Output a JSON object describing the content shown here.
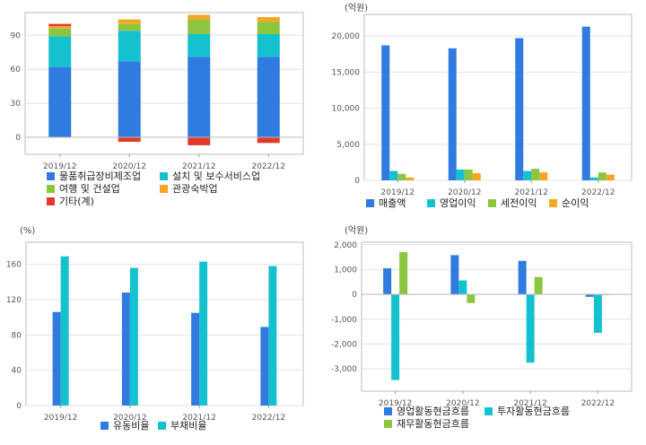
{
  "chart_data": [
    {
      "type": "bar",
      "stacked": true,
      "title": "",
      "unit": "",
      "categories": [
        "2019/12",
        "2020/12",
        "2021/12",
        "2022/12"
      ],
      "ylim": [
        -15,
        110
      ],
      "yticks": [
        0,
        30,
        60,
        90
      ],
      "grid": true,
      "legend": "bottom",
      "series": [
        {
          "name": "물품취급장비제조업",
          "color": "#2f7be0",
          "values": [
            62,
            67,
            71,
            71
          ]
        },
        {
          "name": "설치 및 보수서비스업",
          "color": "#15c1cf",
          "values": [
            27,
            27,
            20,
            20
          ]
        },
        {
          "name": "여행 및 건설업",
          "color": "#8cc63f",
          "values": [
            7,
            6,
            13,
            11
          ]
        },
        {
          "name": "관광숙박업",
          "color": "#f6a623",
          "values": [
            2,
            4,
            4,
            4
          ]
        },
        {
          "name": "기타(계)",
          "color": "#e03b2a",
          "values": [
            2,
            -4,
            -7,
            -5
          ]
        }
      ]
    },
    {
      "type": "bar",
      "title": "",
      "unit": "(억원)",
      "categories": [
        "2019/12",
        "2020/12",
        "2021/12",
        "2022/12"
      ],
      "ylim": [
        0,
        23000
      ],
      "yticks": [
        0,
        5000,
        10000,
        15000,
        20000
      ],
      "grid": true,
      "legend": "bottom",
      "series": [
        {
          "name": "매출액",
          "color": "#2f7be0",
          "values": [
            18700,
            18300,
            19700,
            21300
          ]
        },
        {
          "name": "영업이익",
          "color": "#15c1cf",
          "values": [
            1300,
            1500,
            1300,
            400
          ]
        },
        {
          "name": "세전이익",
          "color": "#8cc63f",
          "values": [
            900,
            1500,
            1600,
            1100
          ]
        },
        {
          "name": "순이익",
          "color": "#f6a623",
          "values": [
            400,
            1000,
            1100,
            800
          ]
        }
      ]
    },
    {
      "type": "bar",
      "title": "",
      "unit": "(%)",
      "categories": [
        "2019/12",
        "2020/12",
        "2021/12",
        "2022/12"
      ],
      "ylim": [
        0,
        185
      ],
      "yticks": [
        0,
        40,
        80,
        120,
        160
      ],
      "grid": true,
      "legend": "bottom",
      "series": [
        {
          "name": "유동비율",
          "color": "#2f7be0",
          "values": [
            106,
            128,
            105,
            89
          ]
        },
        {
          "name": "부채비율",
          "color": "#15c1cf",
          "values": [
            169,
            156,
            163,
            158
          ]
        }
      ]
    },
    {
      "type": "bar",
      "title": "",
      "unit": "(억원)",
      "categories": [
        "2019/12",
        "2020/12",
        "2021/12",
        "2022/12"
      ],
      "ylim": [
        -3900,
        2100
      ],
      "yticks": [
        -3000,
        -2000,
        -1000,
        0,
        1000,
        2000
      ],
      "grid": true,
      "legend": "bottom",
      "series": [
        {
          "name": "영업활동현금흐름",
          "color": "#2f7be0",
          "values": [
            1050,
            1580,
            1350,
            -100
          ]
        },
        {
          "name": "투자활동현금흐름",
          "color": "#15c1cf",
          "values": [
            -3450,
            560,
            -2750,
            -1550
          ]
        },
        {
          "name": "재무활동현금흐름",
          "color": "#8cc63f",
          "values": [
            1700,
            -350,
            700,
            -30
          ]
        }
      ]
    }
  ]
}
